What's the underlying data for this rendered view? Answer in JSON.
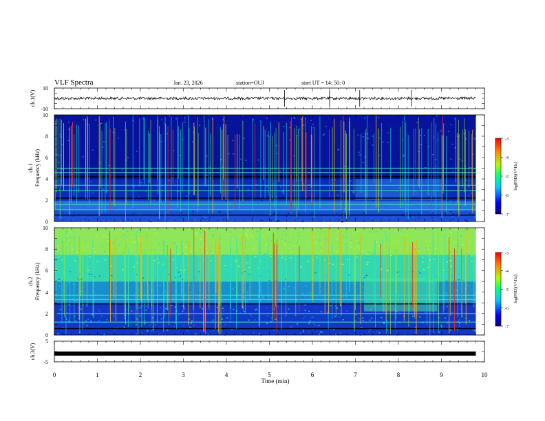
{
  "header": {
    "title": "VLF Spectra",
    "date": "Jan. 23, 2026",
    "station": "station=OUJ",
    "start": "start UT =  14: 50: 0"
  },
  "chart_data": [
    {
      "type": "line",
      "id": "ch1-waveform",
      "ylabel": "ch.1(V)",
      "ylim": [
        -10,
        10
      ],
      "yticks": [
        "10",
        "-10"
      ],
      "baseline": 0,
      "spike_times_min": [
        5.35,
        6.4,
        7.1,
        8.3
      ]
    },
    {
      "type": "heatmap",
      "id": "ch1-spectrogram",
      "ylabel_line1": "ch.1",
      "ylabel_line2": "Frequency (kHz)",
      "ylim": [
        0,
        10
      ],
      "yticks": [
        "0",
        "2",
        "4",
        "6",
        "8",
        "10"
      ],
      "colorbar": {
        "label": "log(PSD)(V²/Hz)",
        "range": [
          -7,
          -3
        ],
        "ticks": [
          "-3",
          "-4",
          "-5",
          "-6",
          "-7"
        ]
      },
      "bands_khz": [
        0.6,
        1.1,
        1.6,
        2.2,
        2.9,
        3.4,
        4.2,
        4.6,
        5.0
      ],
      "emission_band_khz": [
        1.1,
        1.9
      ],
      "enhanced_region": {
        "t_min": [
          7.0,
          9.0
        ],
        "f_khz": [
          2.0,
          4.0
        ]
      }
    },
    {
      "type": "heatmap",
      "id": "ch2-spectrogram",
      "ylabel_line1": "ch.2",
      "ylabel_line2": "Frequency (kHz)",
      "ylim": [
        0,
        10
      ],
      "yticks": [
        "0",
        "2",
        "4",
        "6",
        "8",
        "10"
      ],
      "colorbar": {
        "label": "log(PSD)(V²/Hz)",
        "range": [
          -7,
          -3
        ],
        "ticks": [
          "-3",
          "-4",
          "-5",
          "-6",
          "-7"
        ]
      },
      "bands_khz": [
        0.6,
        1.2,
        2.0,
        2.9,
        3.3,
        3.7
      ],
      "enhanced_region": {
        "t_min": [
          7.2,
          8.9
        ],
        "f_khz": [
          2.2,
          5.3
        ]
      }
    },
    {
      "type": "line",
      "id": "ch3-waveform",
      "ylabel": "ch.3(V)",
      "ylim": [
        -5,
        5
      ],
      "yticks": [
        "5",
        "-5"
      ],
      "value": -1
    }
  ],
  "xaxis": {
    "label": "Time (min)",
    "range": [
      0,
      10
    ],
    "ticks": [
      "0",
      "1",
      "2",
      "3",
      "4",
      "5",
      "6",
      "7",
      "8",
      "9",
      "10"
    ]
  }
}
